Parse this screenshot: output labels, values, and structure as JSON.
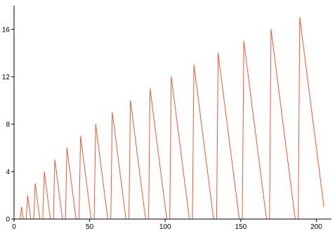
{
  "chart_data": {
    "type": "line",
    "title": "",
    "xlabel": "",
    "ylabel": "",
    "xlim": [
      0,
      210
    ],
    "ylim": [
      0,
      18
    ],
    "x_ticks": [
      0,
      50,
      100,
      150,
      200
    ],
    "y_ticks": [
      0,
      4,
      8,
      12,
      16
    ],
    "x_tick_labels": [
      "0",
      "50",
      "100",
      "150",
      "200"
    ],
    "y_tick_labels": [
      "0",
      "4",
      "8",
      "12",
      "16"
    ],
    "grid": false,
    "legend": false,
    "line_color": "#ef5a3c",
    "series": [
      {
        "points": [
          [
            4,
            0
          ],
          [
            5,
            1
          ],
          [
            6,
            0
          ],
          [
            8,
            0
          ],
          [
            9,
            2
          ],
          [
            10,
            1
          ],
          [
            11,
            0
          ],
          [
            13,
            0
          ],
          [
            14,
            3
          ],
          [
            15,
            2
          ],
          [
            16,
            1
          ],
          [
            17,
            0
          ],
          [
            19,
            0
          ],
          [
            20,
            4
          ],
          [
            21,
            3
          ],
          [
            22,
            2
          ],
          [
            23,
            1
          ],
          [
            24,
            0
          ],
          [
            26,
            0
          ],
          [
            27,
            5
          ],
          [
            28,
            4
          ],
          [
            29,
            3
          ],
          [
            30,
            2
          ],
          [
            31,
            1
          ],
          [
            32,
            0
          ],
          [
            34,
            0
          ],
          [
            35,
            6
          ],
          [
            36,
            5
          ],
          [
            37,
            4
          ],
          [
            38,
            3
          ],
          [
            39,
            2
          ],
          [
            40,
            1
          ],
          [
            41,
            0
          ],
          [
            43,
            0
          ],
          [
            44,
            7
          ],
          [
            45,
            6
          ],
          [
            46,
            5
          ],
          [
            47,
            4
          ],
          [
            48,
            3
          ],
          [
            49,
            2
          ],
          [
            50,
            1
          ],
          [
            51,
            0
          ],
          [
            53,
            0
          ],
          [
            54,
            8
          ],
          [
            55,
            7
          ],
          [
            56,
            6
          ],
          [
            57,
            5
          ],
          [
            58,
            4
          ],
          [
            59,
            3
          ],
          [
            60,
            2
          ],
          [
            61,
            1
          ],
          [
            62,
            0
          ],
          [
            64,
            0
          ],
          [
            65,
            9
          ],
          [
            66,
            8
          ],
          [
            67,
            7
          ],
          [
            68,
            6
          ],
          [
            69,
            5
          ],
          [
            70,
            4
          ],
          [
            71,
            3
          ],
          [
            72,
            2
          ],
          [
            73,
            1
          ],
          [
            74,
            0
          ],
          [
            76,
            0
          ],
          [
            77,
            10
          ],
          [
            78,
            9
          ],
          [
            79,
            8
          ],
          [
            80,
            7
          ],
          [
            81,
            6
          ],
          [
            82,
            5
          ],
          [
            83,
            4
          ],
          [
            84,
            3
          ],
          [
            85,
            2
          ],
          [
            86,
            1
          ],
          [
            87,
            0
          ],
          [
            89,
            0
          ],
          [
            90,
            11
          ],
          [
            91,
            10
          ],
          [
            92,
            9
          ],
          [
            93,
            8
          ],
          [
            94,
            7
          ],
          [
            95,
            6
          ],
          [
            96,
            5
          ],
          [
            97,
            4
          ],
          [
            98,
            3
          ],
          [
            99,
            2
          ],
          [
            100,
            1
          ],
          [
            101,
            0
          ],
          [
            103,
            0
          ],
          [
            104,
            12
          ],
          [
            105,
            11
          ],
          [
            106,
            10
          ],
          [
            107,
            9
          ],
          [
            108,
            8
          ],
          [
            109,
            7
          ],
          [
            110,
            6
          ],
          [
            111,
            5
          ],
          [
            112,
            4
          ],
          [
            113,
            3
          ],
          [
            114,
            2
          ],
          [
            115,
            1
          ],
          [
            116,
            0
          ],
          [
            118,
            0
          ],
          [
            119,
            13
          ],
          [
            120,
            12
          ],
          [
            121,
            11
          ],
          [
            122,
            10
          ],
          [
            123,
            9
          ],
          [
            124,
            8
          ],
          [
            125,
            7
          ],
          [
            126,
            6
          ],
          [
            127,
            5
          ],
          [
            128,
            4
          ],
          [
            129,
            3
          ],
          [
            130,
            2
          ],
          [
            131,
            1
          ],
          [
            132,
            0
          ],
          [
            134,
            0
          ],
          [
            135,
            14
          ],
          [
            136,
            13
          ],
          [
            137,
            12
          ],
          [
            138,
            11
          ],
          [
            139,
            10
          ],
          [
            140,
            9
          ],
          [
            141,
            8
          ],
          [
            142,
            7
          ],
          [
            143,
            6
          ],
          [
            144,
            5
          ],
          [
            145,
            4
          ],
          [
            146,
            3
          ],
          [
            147,
            2
          ],
          [
            148,
            1
          ],
          [
            149,
            0
          ],
          [
            151,
            0
          ],
          [
            152,
            15
          ],
          [
            153,
            14
          ],
          [
            154,
            13
          ],
          [
            155,
            12
          ],
          [
            156,
            11
          ],
          [
            157,
            10
          ],
          [
            158,
            9
          ],
          [
            159,
            8
          ],
          [
            160,
            7
          ],
          [
            161,
            6
          ],
          [
            162,
            5
          ],
          [
            163,
            4
          ],
          [
            164,
            3
          ],
          [
            165,
            2
          ],
          [
            166,
            1
          ],
          [
            167,
            0
          ],
          [
            169,
            0
          ],
          [
            170,
            16
          ],
          [
            171,
            15
          ],
          [
            172,
            14
          ],
          [
            173,
            13
          ],
          [
            174,
            12
          ],
          [
            175,
            11
          ],
          [
            176,
            10
          ],
          [
            177,
            9
          ],
          [
            178,
            8
          ],
          [
            179,
            7
          ],
          [
            180,
            6
          ],
          [
            181,
            5
          ],
          [
            182,
            4
          ],
          [
            183,
            3
          ],
          [
            184,
            2
          ],
          [
            185,
            1
          ],
          [
            186,
            0
          ],
          [
            188,
            0
          ],
          [
            189,
            17
          ],
          [
            190,
            16
          ],
          [
            191,
            15
          ],
          [
            192,
            14
          ],
          [
            193,
            13
          ],
          [
            194,
            12
          ],
          [
            195,
            11
          ],
          [
            196,
            10
          ],
          [
            197,
            9
          ],
          [
            198,
            8
          ],
          [
            199,
            7
          ],
          [
            200,
            6
          ],
          [
            201,
            5
          ],
          [
            202,
            4
          ],
          [
            203,
            3
          ],
          [
            204,
            2
          ],
          [
            205,
            1
          ]
        ]
      }
    ]
  }
}
